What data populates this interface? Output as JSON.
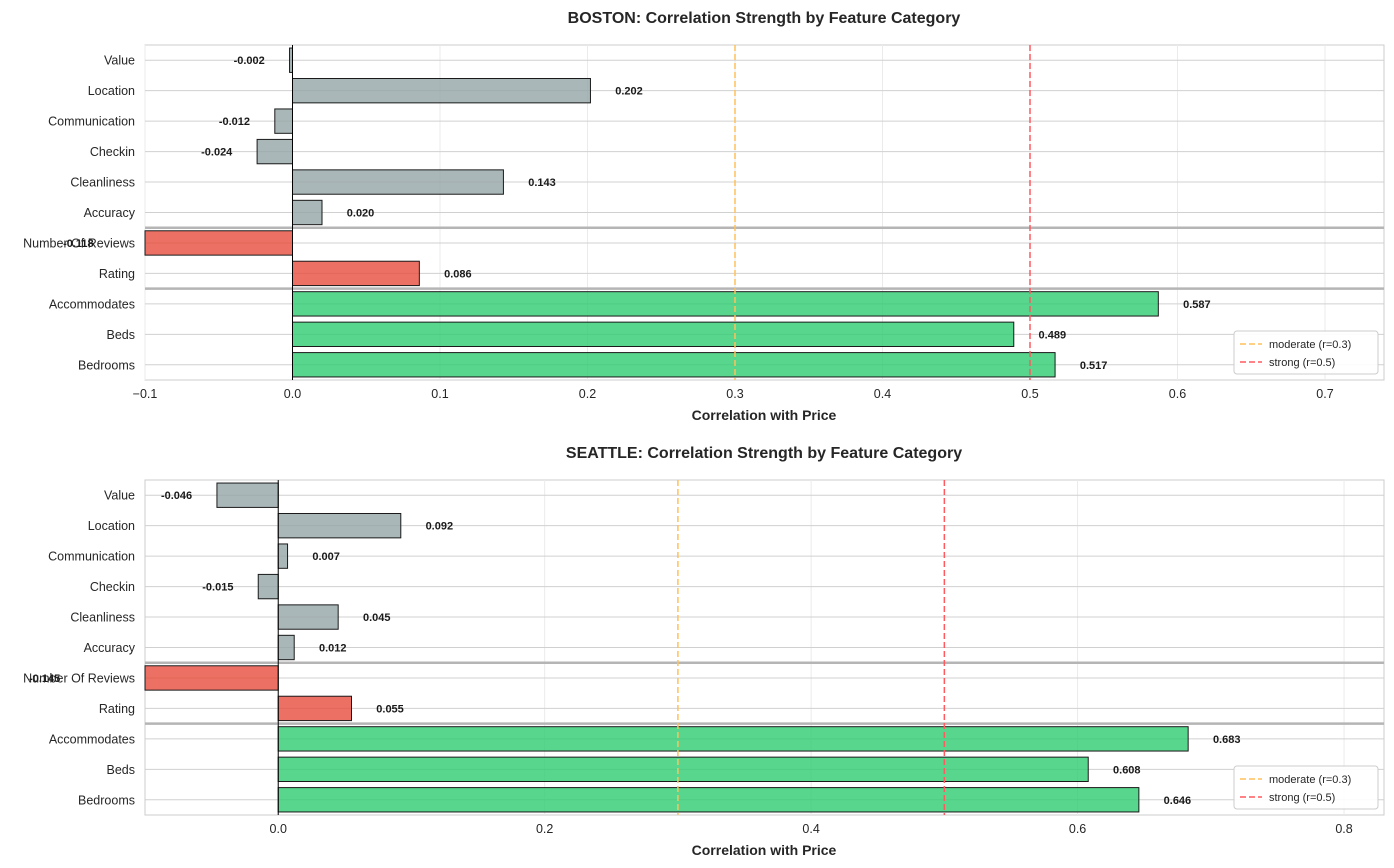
{
  "chart_data": [
    {
      "type": "bar",
      "orientation": "horizontal",
      "title": "BOSTON: Correlation Strength by Feature Category",
      "xlabel": "Correlation with Price",
      "ylabel": "",
      "xlim": [
        -0.1,
        0.74
      ],
      "xticks": [
        -0.1,
        0.0,
        0.1,
        0.2,
        0.3,
        0.4,
        0.5,
        0.6,
        0.7
      ],
      "xtick_labels": [
        "−0.1",
        "0.0",
        "0.1",
        "0.2",
        "0.3",
        "0.4",
        "0.5",
        "0.6",
        "0.7"
      ],
      "grid": true,
      "categories": [
        "Value",
        "Location",
        "Communication",
        "Checkin",
        "Cleanliness",
        "Accuracy",
        "Number Of Reviews",
        "Rating",
        "Accommodates",
        "Beds",
        "Bedrooms"
      ],
      "values": [
        -0.002,
        0.202,
        -0.012,
        -0.024,
        0.143,
        0.02,
        -0.118,
        0.086,
        0.587,
        0.489,
        0.517
      ],
      "value_labels": [
        "-0.002",
        "0.202",
        "-0.012",
        "-0.024",
        "0.143",
        "0.020",
        "-0.118",
        "0.086",
        "0.587",
        "0.489",
        "0.517"
      ],
      "groups": [
        "review",
        "review",
        "review",
        "review",
        "review",
        "review",
        "popularity",
        "popularity",
        "size",
        "size",
        "size"
      ],
      "group_colors": {
        "review": "#95a5a6",
        "popularity": "#e74c3c",
        "size": "#2ecc71"
      },
      "reference_lines": [
        {
          "x": 0.3,
          "label": "moderate (r=0.3)",
          "color": "#ffc05a"
        },
        {
          "x": 0.5,
          "label": "strong (r=0.5)",
          "color": "#ff5a5f"
        }
      ],
      "legend_position": "lower-right"
    },
    {
      "type": "bar",
      "orientation": "horizontal",
      "title": "SEATTLE: Correlation Strength by Feature Category",
      "xlabel": "Correlation with Price",
      "ylabel": "",
      "xlim": [
        -0.1,
        0.83
      ],
      "xticks": [
        0.0,
        0.2,
        0.4,
        0.6,
        0.8
      ],
      "xtick_labels": [
        "0.0",
        "0.2",
        "0.4",
        "0.6",
        "0.8"
      ],
      "grid": true,
      "categories": [
        "Value",
        "Location",
        "Communication",
        "Checkin",
        "Cleanliness",
        "Accuracy",
        "Number Of Reviews",
        "Rating",
        "Accommodates",
        "Beds",
        "Bedrooms"
      ],
      "values": [
        -0.046,
        0.092,
        0.007,
        -0.015,
        0.045,
        0.012,
        -0.145,
        0.055,
        0.683,
        0.608,
        0.646
      ],
      "value_labels": [
        "-0.046",
        "0.092",
        "0.007",
        "-0.015",
        "0.045",
        "0.012",
        "-0.145",
        "0.055",
        "0.683",
        "0.608",
        "0.646"
      ],
      "groups": [
        "review",
        "review",
        "review",
        "review",
        "review",
        "review",
        "popularity",
        "popularity",
        "size",
        "size",
        "size"
      ],
      "group_colors": {
        "review": "#95a5a6",
        "popularity": "#e74c3c",
        "size": "#2ecc71"
      },
      "reference_lines": [
        {
          "x": 0.3,
          "label": "moderate (r=0.3)",
          "color": "#ffc05a"
        },
        {
          "x": 0.5,
          "label": "strong (r=0.5)",
          "color": "#ff5a5f"
        }
      ],
      "legend_position": "lower-right"
    }
  ]
}
